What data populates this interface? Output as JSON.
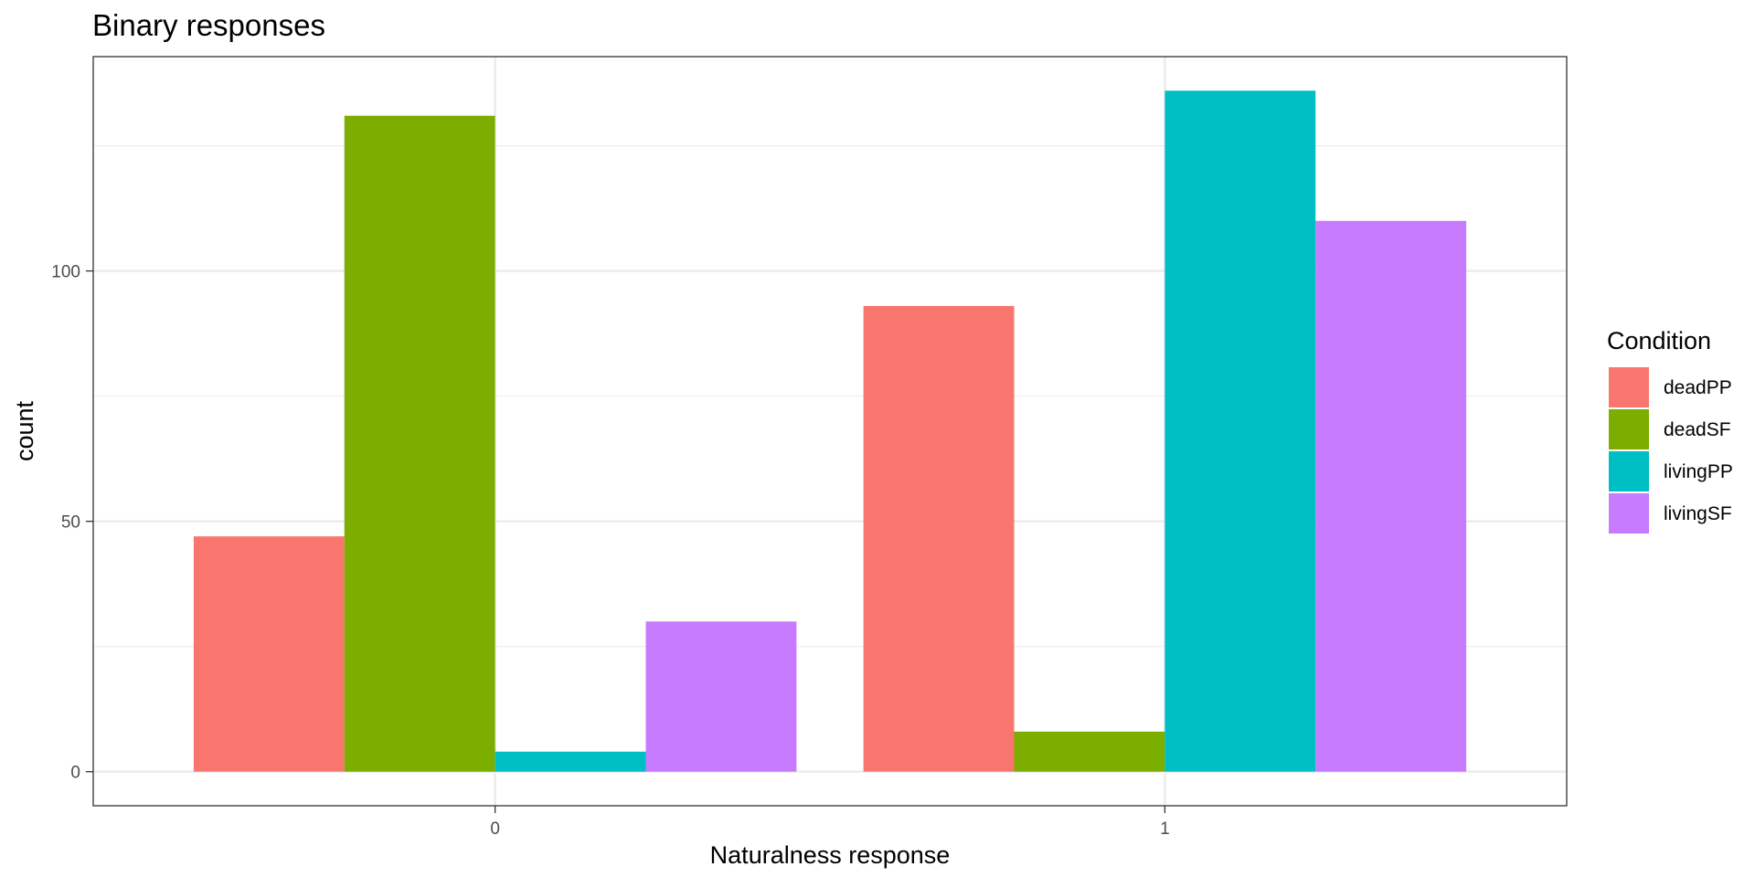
{
  "chart_data": {
    "type": "bar",
    "title": "Binary responses",
    "xlabel": "Naturalness response",
    "ylabel": "count",
    "categories": [
      "0",
      "1"
    ],
    "series": [
      {
        "name": "deadPP",
        "color": "#F8766D",
        "values": [
          47,
          93
        ]
      },
      {
        "name": "deadSF",
        "color": "#7CAE00",
        "values": [
          131,
          8
        ]
      },
      {
        "name": "livingPP",
        "color": "#00BFC4",
        "values": [
          4,
          136
        ]
      },
      {
        "name": "livingSF",
        "color": "#C77CFF",
        "values": [
          30,
          110
        ]
      }
    ],
    "yticks": [
      0,
      50,
      100
    ],
    "ylim": [
      -6.8,
      142.8
    ],
    "grid": true,
    "legend": {
      "title": "Condition",
      "position": "right"
    }
  }
}
